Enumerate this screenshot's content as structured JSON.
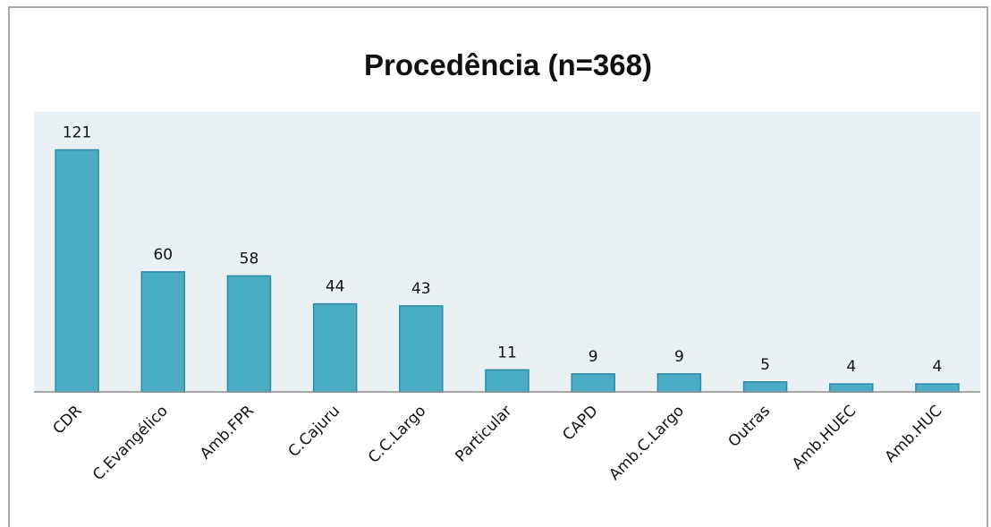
{
  "chart_data": {
    "type": "bar",
    "title": "Procedência (n=368)",
    "categories": [
      "CDR",
      "C.Evangélico",
      "Amb.FPR",
      "C.Cajuru",
      "C.C.Largo",
      "Particular",
      "CAPD",
      "Amb.C.Largo",
      "Outras",
      "Amb.HUEC",
      "Amb.HUC"
    ],
    "values": [
      121,
      60,
      58,
      44,
      43,
      11,
      9,
      9,
      5,
      4,
      4
    ],
    "color": "#4bacc6",
    "ylim": [
      0,
      140
    ]
  }
}
